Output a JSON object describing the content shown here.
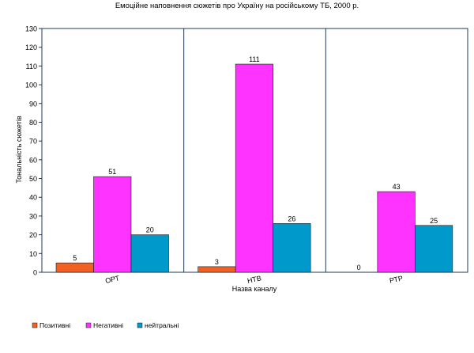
{
  "chart_data": {
    "type": "bar",
    "title": "Емоційне наповнення сюжетів про Україну на російському ТБ, 2000 р.",
    "xlabel": "Назва каналу",
    "ylabel": "Тональність сюжетів",
    "categories": [
      "ОРТ",
      "НТВ",
      "РТР"
    ],
    "series": [
      {
        "name": "Позитивні",
        "values": [
          5,
          3,
          0
        ],
        "color": "#f26122"
      },
      {
        "name": "Негативні",
        "values": [
          51,
          111,
          43
        ],
        "color": "#ff33ff"
      },
      {
        "name": "нейтральні",
        "values": [
          20,
          26,
          25
        ],
        "color": "#0099cc"
      }
    ],
    "ylim": [
      0,
      130
    ],
    "yticks": [
      0,
      10,
      20,
      30,
      40,
      50,
      60,
      70,
      80,
      90,
      100,
      110,
      120,
      130
    ],
    "grid": false,
    "category_separators": true,
    "legend_position": "bottom-left"
  }
}
